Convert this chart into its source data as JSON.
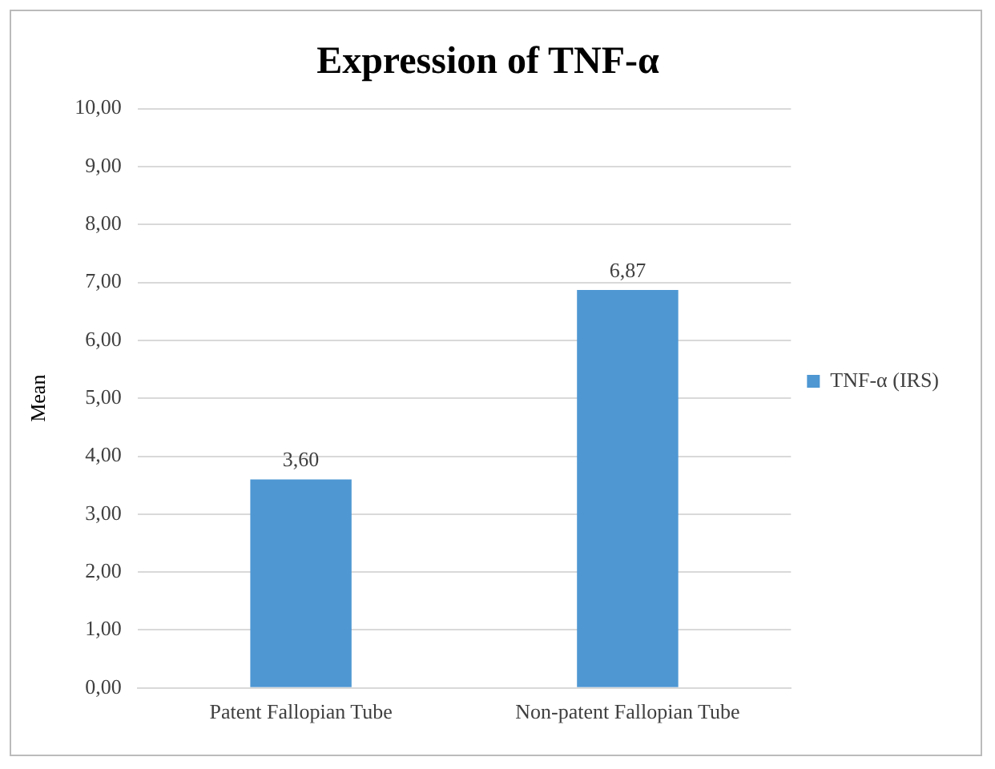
{
  "chart_data": {
    "type": "bar",
    "title": "Expression of TNF-α",
    "ylabel": "Mean",
    "categories": [
      "Patent Fallopian Tube",
      "Non-patent Fallopian Tube"
    ],
    "series": [
      {
        "name": "TNF-α (IRS)",
        "color": "#4e97d3",
        "values": [
          3.6,
          6.87
        ],
        "value_labels": [
          "3,60",
          "6,87"
        ]
      }
    ],
    "ylim": [
      0,
      10
    ],
    "yticks": [
      {
        "value": 0,
        "label": "0,00"
      },
      {
        "value": 1,
        "label": "1,00"
      },
      {
        "value": 2,
        "label": "2,00"
      },
      {
        "value": 3,
        "label": "3,00"
      },
      {
        "value": 4,
        "label": "4,00"
      },
      {
        "value": 5,
        "label": "5,00"
      },
      {
        "value": 6,
        "label": "6,00"
      },
      {
        "value": 7,
        "label": "7,00"
      },
      {
        "value": 8,
        "label": "8,00"
      },
      {
        "value": 9,
        "label": "9,00"
      },
      {
        "value": 10,
        "label": "10,00"
      }
    ],
    "grid": "y",
    "legend": "right"
  }
}
